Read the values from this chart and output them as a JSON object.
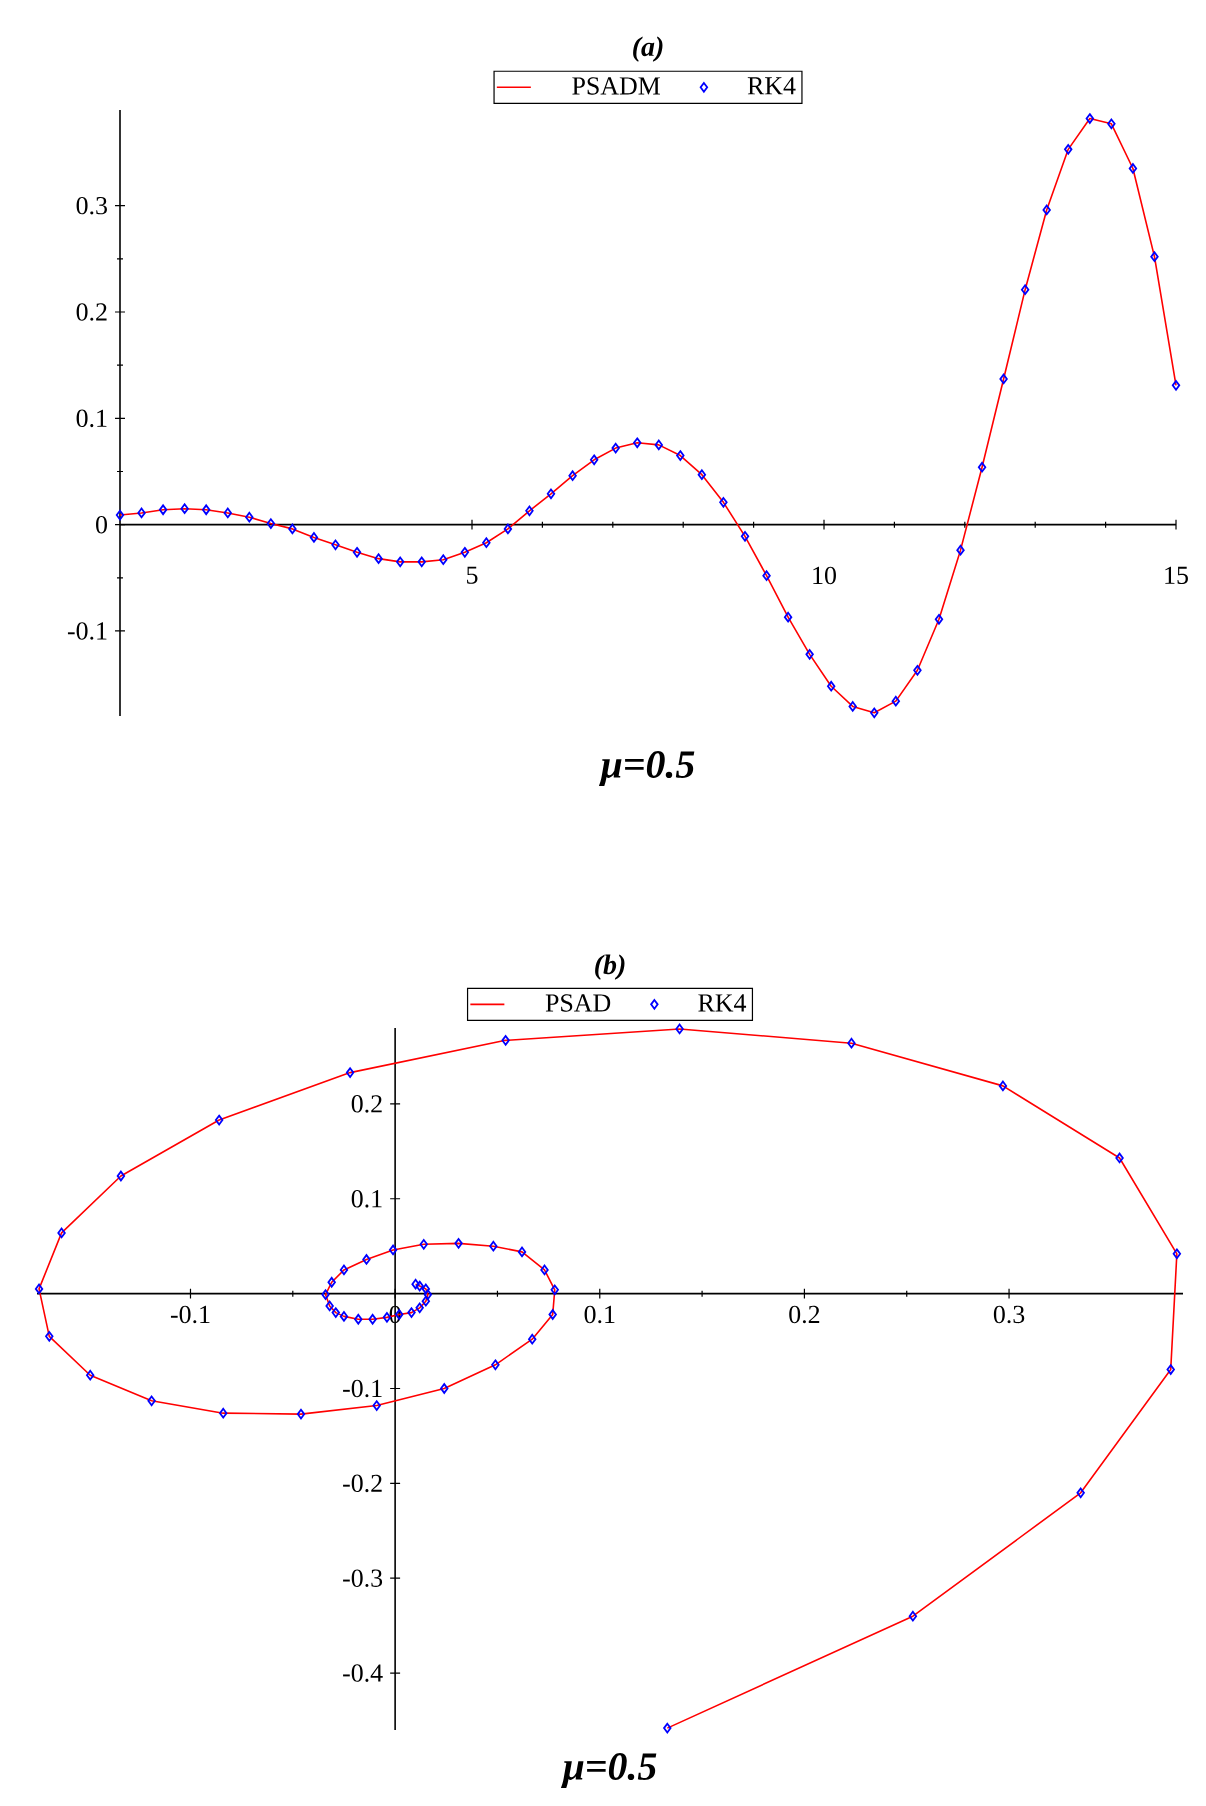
{
  "chart_data": [
    {
      "type": "line",
      "title": "(a)",
      "xlabel": "μ=0.5",
      "legend": "top",
      "x": [
        0,
        0.306,
        0.612,
        0.918,
        1.224,
        1.531,
        1.837,
        2.143,
        2.449,
        2.755,
        3.061,
        3.367,
        3.673,
        3.98,
        4.286,
        4.592,
        4.898,
        5.204,
        5.51,
        5.816,
        6.122,
        6.429,
        6.735,
        7.041,
        7.347,
        7.653,
        7.959,
        8.265,
        8.571,
        8.878,
        9.184,
        9.49,
        9.796,
        10.102,
        10.408,
        10.714,
        11.02,
        11.327,
        11.633,
        11.939,
        12.245,
        12.551,
        12.857,
        13.163,
        13.469,
        13.776,
        14.082,
        14.388,
        14.694,
        15
      ],
      "series": [
        {
          "name": "PSADM",
          "type": "line",
          "color": "#ff0000",
          "marker": "none",
          "line_style": "solid",
          "values": [
            0.009,
            0.011,
            0.014,
            0.015,
            0.014,
            0.011,
            0.007,
            0.001,
            -0.004,
            -0.012,
            -0.019,
            -0.026,
            -0.032,
            -0.035,
            -0.035,
            -0.033,
            -0.026,
            -0.017,
            -0.004,
            0.013,
            0.029,
            0.046,
            0.061,
            0.072,
            0.077,
            0.075,
            0.065,
            0.047,
            0.021,
            -0.011,
            -0.048,
            -0.087,
            -0.122,
            -0.152,
            -0.171,
            -0.177,
            -0.166,
            -0.137,
            -0.089,
            -0.024,
            0.054,
            0.137,
            0.221,
            0.296,
            0.353,
            0.382,
            0.377,
            0.335,
            0.252,
            0.131
          ]
        },
        {
          "name": "RK4",
          "type": "scatter",
          "color": "#0000ff",
          "marker": "diamond",
          "values": [
            0.009,
            0.011,
            0.014,
            0.015,
            0.014,
            0.011,
            0.007,
            0.001,
            -0.004,
            -0.012,
            -0.019,
            -0.026,
            -0.032,
            -0.035,
            -0.035,
            -0.033,
            -0.026,
            -0.017,
            -0.004,
            0.013,
            0.029,
            0.046,
            0.061,
            0.072,
            0.077,
            0.075,
            0.065,
            0.047,
            0.021,
            -0.011,
            -0.048,
            -0.087,
            -0.122,
            -0.152,
            -0.171,
            -0.177,
            -0.166,
            -0.137,
            -0.089,
            -0.024,
            0.054,
            0.137,
            0.221,
            0.296,
            0.353,
            0.382,
            0.377,
            0.335,
            0.252,
            0.131
          ]
        }
      ],
      "xlim": [
        0,
        15
      ],
      "ylim": [
        -0.18,
        0.39
      ],
      "xticks": [
        5,
        10,
        15
      ],
      "yticks": [
        -0.1,
        0,
        0.1,
        0.2,
        0.3
      ]
    },
    {
      "type": "line",
      "title": "(b)",
      "xlabel": "μ=0.5",
      "legend": "top",
      "series": [
        {
          "name": "PSAD",
          "type": "line",
          "color": "#ff0000",
          "marker": "none",
          "line_style": "solid",
          "x": [
            0.01,
            0.012,
            0.015,
            0.016,
            0.015,
            0.012,
            0.008,
            0.002,
            -0.004,
            -0.011,
            -0.018,
            -0.025,
            -0.029,
            -0.032,
            -0.034,
            -0.031,
            -0.025,
            -0.014,
            -0.001,
            0.014,
            0.031,
            0.048,
            0.062,
            0.073,
            0.078,
            0.077,
            0.067,
            0.049,
            0.024,
            -0.009,
            -0.046,
            -0.084,
            -0.119,
            -0.149,
            -0.169,
            -0.174,
            -0.163,
            -0.134,
            -0.086,
            -0.022,
            0.054,
            0.139,
            0.223,
            0.297,
            0.354,
            0.382,
            0.379,
            0.335,
            0.253,
            0.133
          ],
          "values": [
            0.01,
            0.008,
            0.005,
            -0.001,
            -0.008,
            -0.015,
            -0.02,
            -0.022,
            -0.025,
            -0.027,
            -0.027,
            -0.024,
            -0.02,
            -0.013,
            -0.001,
            0.012,
            0.025,
            0.036,
            0.046,
            0.052,
            0.053,
            0.05,
            0.044,
            0.025,
            0.004,
            -0.022,
            -0.048,
            -0.075,
            -0.1,
            -0.118,
            -0.127,
            -0.126,
            -0.113,
            -0.086,
            -0.045,
            0.005,
            0.064,
            0.124,
            0.183,
            0.233,
            0.267,
            0.279,
            0.264,
            0.219,
            0.143,
            0.042,
            -0.08,
            -0.21,
            -0.34,
            -0.458
          ]
        },
        {
          "name": "RK4",
          "type": "scatter",
          "color": "#0000ff",
          "marker": "diamond",
          "x": [
            0.01,
            0.012,
            0.015,
            0.016,
            0.015,
            0.012,
            0.008,
            0.002,
            -0.004,
            -0.011,
            -0.018,
            -0.025,
            -0.029,
            -0.032,
            -0.034,
            -0.031,
            -0.025,
            -0.014,
            -0.001,
            0.014,
            0.031,
            0.048,
            0.062,
            0.073,
            0.078,
            0.077,
            0.067,
            0.049,
            0.024,
            -0.009,
            -0.046,
            -0.084,
            -0.119,
            -0.149,
            -0.169,
            -0.174,
            -0.163,
            -0.134,
            -0.086,
            -0.022,
            0.054,
            0.139,
            0.223,
            0.297,
            0.354,
            0.382,
            0.379,
            0.335,
            0.253,
            0.133
          ],
          "values": [
            0.01,
            0.008,
            0.005,
            -0.001,
            -0.008,
            -0.015,
            -0.02,
            -0.022,
            -0.025,
            -0.027,
            -0.027,
            -0.024,
            -0.02,
            -0.013,
            -0.001,
            0.012,
            0.025,
            0.036,
            0.046,
            0.052,
            0.053,
            0.05,
            0.044,
            0.025,
            0.004,
            -0.022,
            -0.048,
            -0.075,
            -0.1,
            -0.118,
            -0.127,
            -0.126,
            -0.113,
            -0.086,
            -0.045,
            0.005,
            0.064,
            0.124,
            0.183,
            0.233,
            0.267,
            0.279,
            0.264,
            0.219,
            0.143,
            0.042,
            -0.08,
            -0.21,
            -0.34,
            -0.458
          ]
        }
      ],
      "xlim": [
        -0.175,
        0.385
      ],
      "ylim": [
        -0.46,
        0.28
      ],
      "xticks": [
        -0.1,
        0,
        0.1,
        0.2,
        0.3
      ],
      "yticks": [
        -0.4,
        -0.3,
        -0.2,
        -0.1,
        0.1,
        0.2
      ]
    }
  ]
}
